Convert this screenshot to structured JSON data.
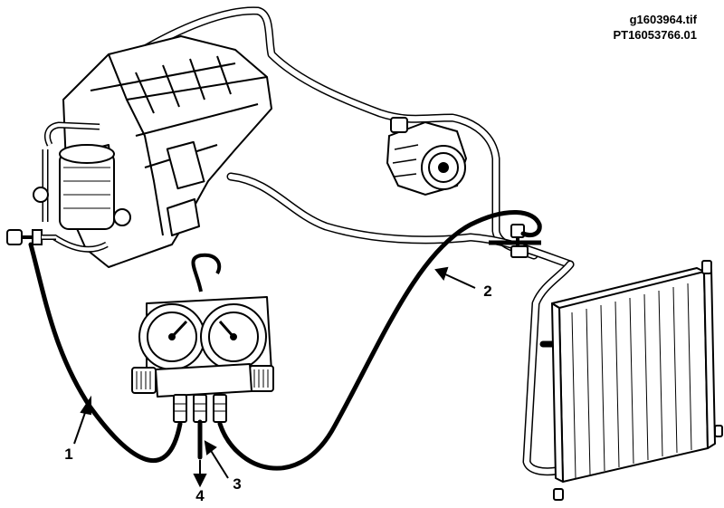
{
  "header": {
    "filename": "g1603964.tif",
    "part_id": "PT16053766.01"
  },
  "callouts": [
    {
      "label": "1"
    },
    {
      "label": "2"
    },
    {
      "label": "3"
    },
    {
      "label": "4"
    }
  ],
  "colors": {
    "line": "#000000",
    "background": "#ffffff"
  }
}
